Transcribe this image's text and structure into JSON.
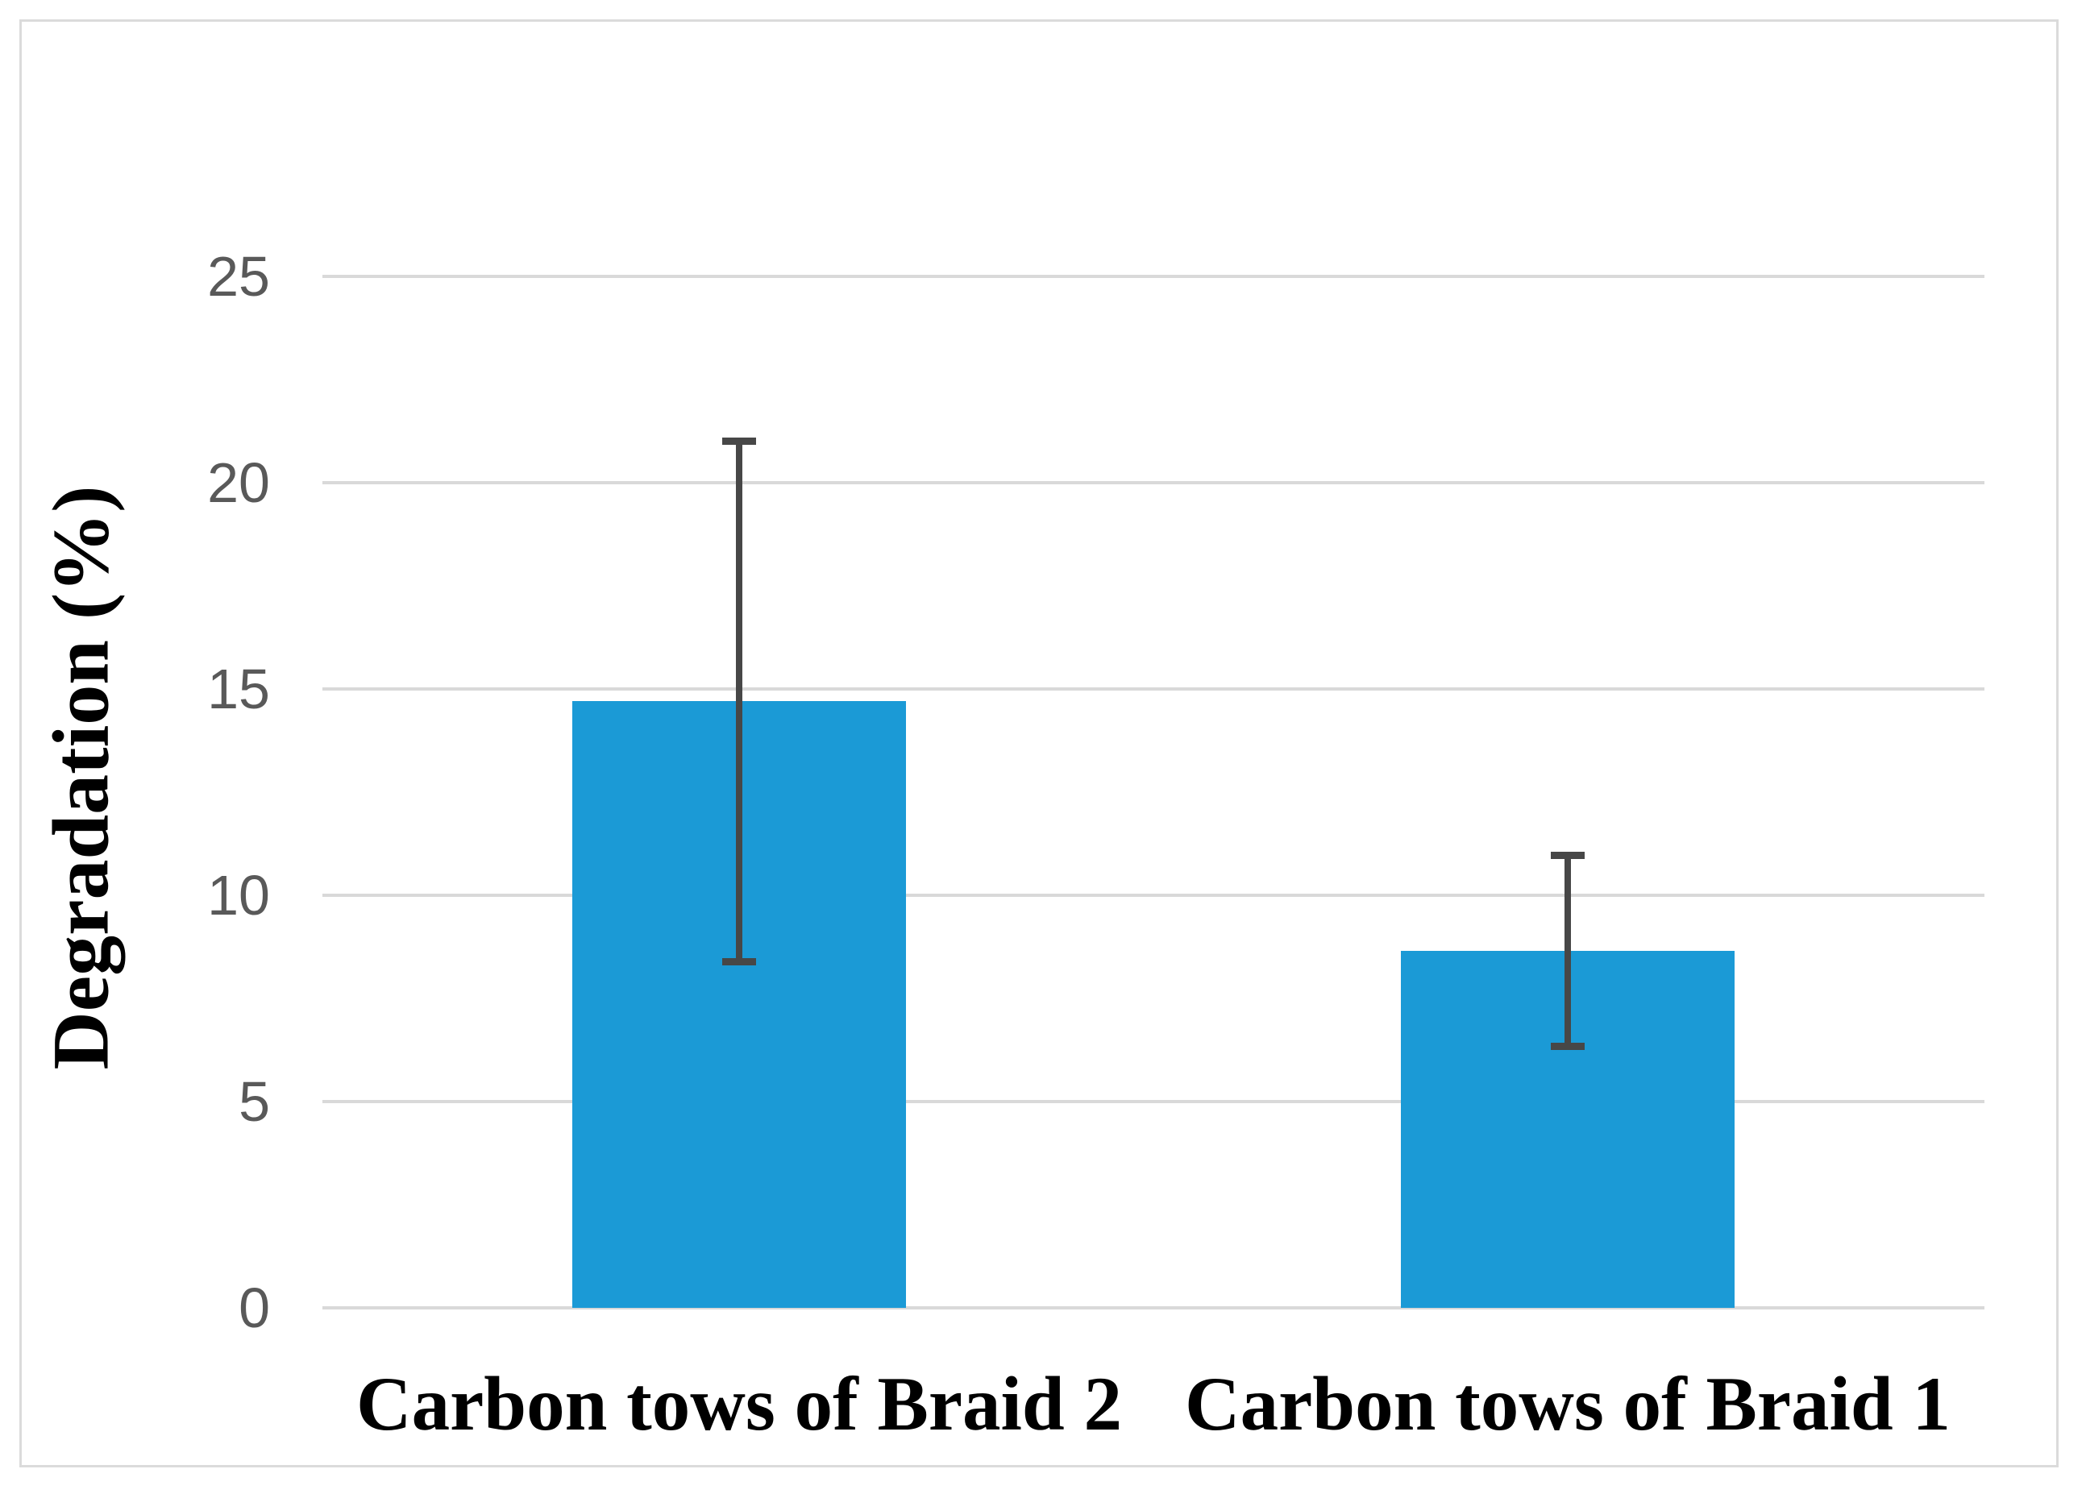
{
  "chart_data": {
    "type": "bar",
    "categories": [
      "Carbon tows of Braid 2",
      "Carbon tows of Braid 1"
    ],
    "values": [
      14.7,
      8.65
    ],
    "error_bars": [
      6.4,
      2.4
    ],
    "series": [
      {
        "name": "Degradation",
        "values": [
          14.7,
          8.65
        ],
        "errors_plus": [
          6.4,
          2.4
        ],
        "errors_minus": [
          6.4,
          2.4
        ]
      }
    ],
    "title": "",
    "xlabel": "",
    "ylabel": "Degradation (%)",
    "ylim": [
      0,
      25
    ],
    "yticks": [
      0,
      5,
      10,
      15,
      20,
      25
    ],
    "grid": "horizontal-only",
    "legend_position": "none",
    "colors": {
      "bar": "#1b9ad6",
      "error_bar": "#474747",
      "gridline": "#d9d9d9",
      "tick_label": "#595959",
      "axis_title": "#000000",
      "category_label": "#000000",
      "figure_border": "#dbdbdb",
      "background": "#ffffff"
    }
  }
}
